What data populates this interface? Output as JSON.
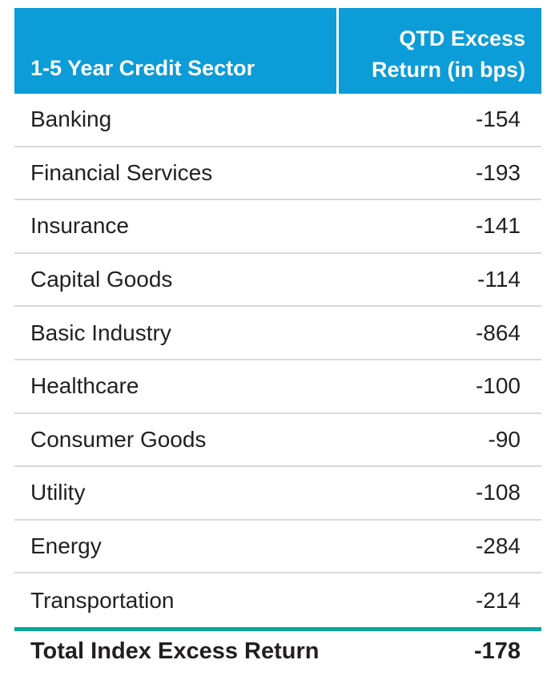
{
  "table": {
    "header": {
      "sector_label": "1-5 Year Credit Sector",
      "return_label_line1": "QTD Excess",
      "return_label_line2": "Return (in bps)"
    },
    "rows": [
      {
        "sector": "Banking",
        "value": "-154"
      },
      {
        "sector": "Financial Services",
        "value": "-193"
      },
      {
        "sector": "Insurance",
        "value": "-141"
      },
      {
        "sector": "Capital Goods",
        "value": "-114"
      },
      {
        "sector": "Basic Industry",
        "value": "-864"
      },
      {
        "sector": "Healthcare",
        "value": "-100"
      },
      {
        "sector": "Consumer Goods",
        "value": "-90"
      },
      {
        "sector": "Utility",
        "value": "-108"
      },
      {
        "sector": "Energy",
        "value": "-284"
      },
      {
        "sector": "Transportation",
        "value": "-214"
      }
    ],
    "total": {
      "label": "Total Index Excess Return",
      "value": "-178"
    }
  },
  "colors": {
    "header_bg": "#0c9cd8",
    "header_text": "#ffffff",
    "row_divider": "#d9d9d9",
    "total_rule": "#00a79e",
    "body_text": "#231f20",
    "page_bg": "#ffffff"
  },
  "chart_data": {
    "type": "table",
    "title": "",
    "columns": [
      "1-5 Year Credit Sector",
      "QTD Excess Return (in bps)"
    ],
    "categories": [
      "Banking",
      "Financial Services",
      "Insurance",
      "Capital Goods",
      "Basic Industry",
      "Healthcare",
      "Consumer Goods",
      "Utility",
      "Energy",
      "Transportation"
    ],
    "values": [
      -154,
      -193,
      -141,
      -114,
      -864,
      -100,
      -90,
      -108,
      -284,
      -214
    ],
    "total_row": {
      "label": "Total Index Excess Return",
      "value": -178
    },
    "units": "bps"
  }
}
